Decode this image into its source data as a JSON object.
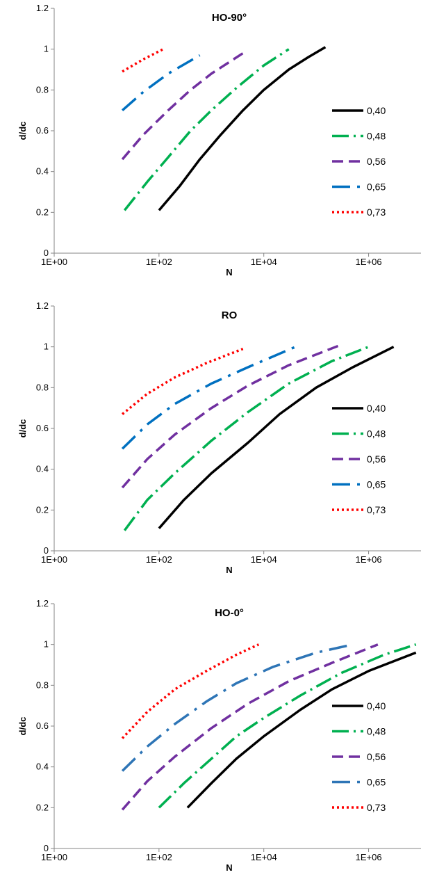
{
  "chart_data": [
    {
      "type": "line",
      "title": "HO-90°",
      "xlabel": "N",
      "ylabel": "d/dc",
      "x_scale": "log",
      "xlim": [
        1,
        10000000
      ],
      "ylim": [
        0,
        1.2
      ],
      "x_ticks": [
        "1E+00",
        "1E+02",
        "1E+04",
        "1E+06"
      ],
      "y_ticks": [
        "0",
        "0.2",
        "0.4",
        "0.6",
        "0.8",
        "1",
        "1.2"
      ],
      "grid": false,
      "legend_position": "right",
      "series": [
        {
          "name": "0,40",
          "color": "#000000",
          "dash": "solid",
          "x": [
            100,
            250,
            600,
            1500,
            4000,
            10000,
            30000,
            70000,
            150000
          ],
          "y": [
            0.21,
            0.33,
            0.46,
            0.58,
            0.7,
            0.8,
            0.9,
            0.96,
            1.01
          ]
        },
        {
          "name": "0,48",
          "color": "#00b050",
          "dash": "dashdot",
          "x": [
            22,
            60,
            150,
            400,
            1000,
            3000,
            10000,
            30000
          ],
          "y": [
            0.21,
            0.35,
            0.47,
            0.6,
            0.7,
            0.81,
            0.92,
            1.0
          ]
        },
        {
          "name": "0,56",
          "color": "#7030a0",
          "dash": "dash",
          "x": [
            20,
            50,
            150,
            400,
            1000,
            4000
          ],
          "y": [
            0.46,
            0.58,
            0.7,
            0.8,
            0.88,
            0.98
          ]
        },
        {
          "name": "0,65",
          "color": "#0070c0",
          "dash": "longdashdot",
          "x": [
            20,
            50,
            150,
            600
          ],
          "y": [
            0.7,
            0.79,
            0.88,
            0.97
          ]
        },
        {
          "name": "0,73",
          "color": "#ff0000",
          "dash": "dot",
          "x": [
            20,
            50,
            120
          ],
          "y": [
            0.89,
            0.95,
            1.0
          ]
        }
      ]
    },
    {
      "type": "line",
      "title": "RO",
      "xlabel": "N",
      "ylabel": "d/dc",
      "x_scale": "log",
      "xlim": [
        1,
        10000000
      ],
      "ylim": [
        0,
        1.2
      ],
      "x_ticks": [
        "1E+00",
        "1E+02",
        "1E+04",
        "1E+06"
      ],
      "y_ticks": [
        "0",
        "0.2",
        "0.4",
        "0.6",
        "0.8",
        "1",
        "1.2"
      ],
      "grid": false,
      "legend_position": "right",
      "series": [
        {
          "name": "0,40",
          "color": "#000000",
          "dash": "solid",
          "x": [
            100,
            300,
            1000,
            5000,
            20000,
            100000,
            500000,
            3000000
          ],
          "y": [
            0.11,
            0.25,
            0.38,
            0.53,
            0.67,
            0.8,
            0.9,
            1.0
          ]
        },
        {
          "name": "0,48",
          "color": "#00b050",
          "dash": "dashdot",
          "x": [
            22,
            60,
            200,
            1000,
            5000,
            30000,
            200000,
            1000000
          ],
          "y": [
            0.1,
            0.25,
            0.38,
            0.54,
            0.68,
            0.82,
            0.93,
            1.0
          ]
        },
        {
          "name": "0,56",
          "color": "#7030a0",
          "dash": "dash",
          "x": [
            20,
            60,
            200,
            1000,
            5000,
            30000,
            300000
          ],
          "y": [
            0.31,
            0.45,
            0.57,
            0.7,
            0.81,
            0.91,
            1.01
          ]
        },
        {
          "name": "0,65",
          "color": "#0070c0",
          "dash": "longdashdot",
          "x": [
            20,
            60,
            200,
            1000,
            5000,
            50000
          ],
          "y": [
            0.5,
            0.62,
            0.72,
            0.82,
            0.9,
            1.01
          ]
        },
        {
          "name": "0,73",
          "color": "#ff0000",
          "dash": "dot",
          "x": [
            20,
            60,
            200,
            800,
            4000
          ],
          "y": [
            0.67,
            0.77,
            0.85,
            0.92,
            0.99
          ]
        }
      ]
    },
    {
      "type": "line",
      "title": "HO-0°",
      "xlabel": "N",
      "ylabel": "d/dc",
      "x_scale": "log",
      "xlim": [
        1,
        10000000
      ],
      "ylim": [
        0,
        1.2
      ],
      "x_ticks": [
        "1E+00",
        "1E+02",
        "1E+04",
        "1E+06"
      ],
      "y_ticks": [
        "0",
        "0.2",
        "0.4",
        "0.6",
        "0.8",
        "1",
        "1.2"
      ],
      "grid": false,
      "legend_position": "right",
      "series": [
        {
          "name": "0,40",
          "color": "#000000",
          "dash": "solid",
          "x": [
            350,
            1000,
            3000,
            10000,
            50000,
            200000,
            1000000,
            8000000
          ],
          "y": [
            0.2,
            0.32,
            0.44,
            0.55,
            0.68,
            0.78,
            0.87,
            0.96
          ]
        },
        {
          "name": "0,48",
          "color": "#00b050",
          "dash": "dashdot",
          "x": [
            100,
            300,
            1000,
            3000,
            10000,
            50000,
            300000,
            2000000,
            8000000
          ],
          "y": [
            0.2,
            0.32,
            0.44,
            0.55,
            0.64,
            0.75,
            0.86,
            0.95,
            1.0
          ]
        },
        {
          "name": "0,56",
          "color": "#7030a0",
          "dash": "dash",
          "x": [
            20,
            60,
            200,
            1000,
            5000,
            30000,
            200000,
            1500000
          ],
          "y": [
            0.19,
            0.33,
            0.45,
            0.59,
            0.71,
            0.82,
            0.91,
            1.0
          ]
        },
        {
          "name": "0,65",
          "color": "#2e75b6",
          "dash": "longdashdot",
          "x": [
            20,
            60,
            200,
            800,
            3000,
            15000,
            100000,
            500000
          ],
          "y": [
            0.38,
            0.5,
            0.61,
            0.72,
            0.81,
            0.89,
            0.96,
            1.0
          ]
        },
        {
          "name": "0,73",
          "color": "#ff0000",
          "dash": "dot",
          "x": [
            20,
            60,
            200,
            800,
            3000,
            8000
          ],
          "y": [
            0.54,
            0.67,
            0.78,
            0.87,
            0.95,
            1.0
          ]
        }
      ]
    }
  ]
}
